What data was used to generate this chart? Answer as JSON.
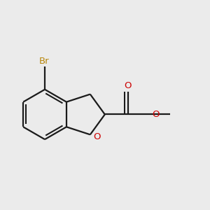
{
  "background_color": "#ebebeb",
  "bond_color": "#1a1a1a",
  "bond_lw": 1.6,
  "atom_colors": {
    "Br": "#b8860b",
    "O": "#cc0000"
  },
  "font_size": 9.5,
  "font_size_methyl": 8.5,
  "figsize": [
    3.0,
    3.0
  ],
  "dpi": 100
}
